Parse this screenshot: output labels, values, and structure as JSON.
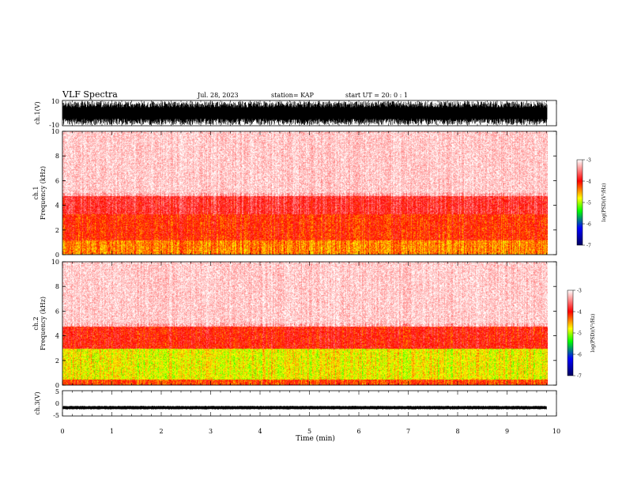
{
  "header": {
    "title": "VLF Spectra",
    "date": "Jul. 28, 2023",
    "station": "station= KAP",
    "start_ut": "start UT =  20: 0 : 1"
  },
  "chart_data": [
    {
      "type": "line",
      "name": "ch1-waveform",
      "ylabel": "ch.1(V)",
      "ylim": [
        -10,
        10
      ],
      "yticks": [
        "10",
        "-10"
      ],
      "xlim": [
        0,
        10
      ],
      "note": "dense saturated waveform"
    },
    {
      "type": "heatmap",
      "name": "ch1-spectrogram",
      "ylabel": "ch.1\nFrequency (kHz)",
      "ylim": [
        0,
        10
      ],
      "yticks": [
        "0",
        "2",
        "4",
        "6",
        "8",
        "10"
      ],
      "xlim": [
        0,
        9.85
      ],
      "colorbar": {
        "label": "log(PSD)(V²/Hz)",
        "range": [
          -7,
          -3
        ],
        "ticks": [
          "-3",
          "-4",
          "-5",
          "-6",
          "-7"
        ]
      },
      "bands": [
        {
          "from_khz": 0,
          "to_khz": 1.2,
          "level": -4.4
        },
        {
          "from_khz": 1.2,
          "to_khz": 3.3,
          "level": -4.1
        },
        {
          "from_khz": 3.3,
          "to_khz": 4.8,
          "level": -3.8
        },
        {
          "from_khz": 4.8,
          "to_khz": 10,
          "level": -3.3
        }
      ]
    },
    {
      "type": "heatmap",
      "name": "ch2-spectrogram",
      "ylabel": "ch.2\nFrequency (kHz)",
      "ylim": [
        0,
        10
      ],
      "yticks": [
        "0",
        "2",
        "4",
        "6",
        "8",
        "10"
      ],
      "xlim": [
        0,
        9.85
      ],
      "colorbar": {
        "label": "log(PSD)(V²/Hz)",
        "range": [
          -7,
          -3
        ],
        "ticks": [
          "-3",
          "-4",
          "-5",
          "-6",
          "-7"
        ]
      },
      "bands": [
        {
          "from_khz": 0,
          "to_khz": 0.5,
          "level": -4.2
        },
        {
          "from_khz": 0.5,
          "to_khz": 3.0,
          "level": -4.8
        },
        {
          "from_khz": 3.0,
          "to_khz": 4.8,
          "level": -4.0
        },
        {
          "from_khz": 4.8,
          "to_khz": 10,
          "level": -3.3
        }
      ]
    },
    {
      "type": "line",
      "name": "ch3-waveform",
      "ylabel": "ch.3(V)",
      "ylim": [
        -5,
        5
      ],
      "yticks": [
        "5",
        "0",
        "-5"
      ],
      "xlim": [
        0,
        10
      ],
      "note": "near-constant trace around -1.5 V"
    }
  ],
  "xaxis": {
    "label": "Time (min)",
    "ticks": [
      "0",
      "1",
      "2",
      "3",
      "4",
      "5",
      "6",
      "7",
      "8",
      "9",
      "10"
    ]
  },
  "colors": {
    "high": "#ff0000",
    "mid": "#ffff00",
    "low_green": "#00ff00",
    "low_blue": "#0000ff",
    "min": "#000080"
  }
}
